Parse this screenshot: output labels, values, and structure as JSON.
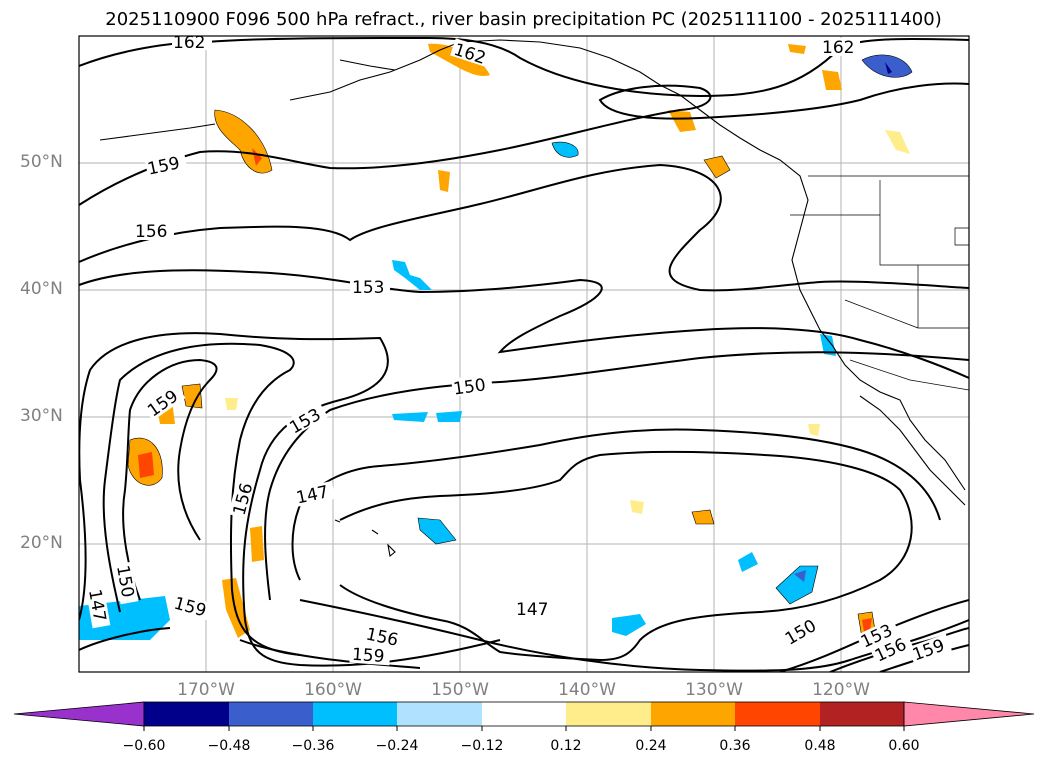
{
  "title": "2025110900 F096 500 hPa refract., river basin precipitation PC (2025111100 - 2025111400)",
  "lat_labels": [
    "50°N",
    "40°N",
    "30°N",
    "20°N"
  ],
  "lon_labels": [
    "170°W",
    "160°W",
    "150°W",
    "140°W",
    "130°W",
    "120°W"
  ],
  "contour_labels": [
    "162",
    "162",
    "162",
    "159",
    "156",
    "153",
    "150",
    "153",
    "156",
    "147",
    "159",
    "150",
    "147",
    "159",
    "156",
    "159",
    "147",
    "150",
    "153",
    "156",
    "159"
  ],
  "colorbar": {
    "ticks": [
      "−0.60",
      "−0.48",
      "−0.36",
      "−0.24",
      "−0.12",
      "0.12",
      "0.24",
      "0.36",
      "0.48",
      "0.60"
    ],
    "colors": [
      "#9932cc",
      "#00008b",
      "#3a5fcd",
      "#00bfff",
      "#b0e2ff",
      "#ffffff",
      "#ffec8b",
      "#ffa500",
      "#ff4500",
      "#b22222",
      "#ff88aa"
    ]
  }
}
